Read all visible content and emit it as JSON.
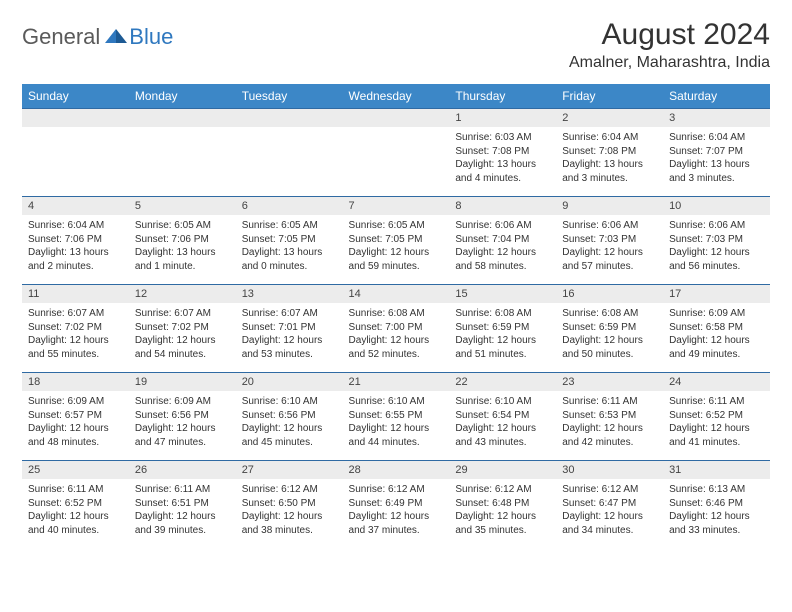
{
  "logo": {
    "text1": "General",
    "text2": "Blue"
  },
  "title": "August 2024",
  "location": "Amalner, Maharashtra, India",
  "colors": {
    "header_bg": "#3c87c7",
    "header_text": "#ffffff",
    "daynum_bg": "#ececec",
    "border": "#2f6aa3",
    "logo_blue": "#2f78bf",
    "logo_gray": "#5a5a5a"
  },
  "daynames": [
    "Sunday",
    "Monday",
    "Tuesday",
    "Wednesday",
    "Thursday",
    "Friday",
    "Saturday"
  ],
  "weeks": [
    [
      {
        "n": "",
        "sr": "",
        "ss": "",
        "dl": ""
      },
      {
        "n": "",
        "sr": "",
        "ss": "",
        "dl": ""
      },
      {
        "n": "",
        "sr": "",
        "ss": "",
        "dl": ""
      },
      {
        "n": "",
        "sr": "",
        "ss": "",
        "dl": ""
      },
      {
        "n": "1",
        "sr": "Sunrise: 6:03 AM",
        "ss": "Sunset: 7:08 PM",
        "dl": "Daylight: 13 hours and 4 minutes."
      },
      {
        "n": "2",
        "sr": "Sunrise: 6:04 AM",
        "ss": "Sunset: 7:08 PM",
        "dl": "Daylight: 13 hours and 3 minutes."
      },
      {
        "n": "3",
        "sr": "Sunrise: 6:04 AM",
        "ss": "Sunset: 7:07 PM",
        "dl": "Daylight: 13 hours and 3 minutes."
      }
    ],
    [
      {
        "n": "4",
        "sr": "Sunrise: 6:04 AM",
        "ss": "Sunset: 7:06 PM",
        "dl": "Daylight: 13 hours and 2 minutes."
      },
      {
        "n": "5",
        "sr": "Sunrise: 6:05 AM",
        "ss": "Sunset: 7:06 PM",
        "dl": "Daylight: 13 hours and 1 minute."
      },
      {
        "n": "6",
        "sr": "Sunrise: 6:05 AM",
        "ss": "Sunset: 7:05 PM",
        "dl": "Daylight: 13 hours and 0 minutes."
      },
      {
        "n": "7",
        "sr": "Sunrise: 6:05 AM",
        "ss": "Sunset: 7:05 PM",
        "dl": "Daylight: 12 hours and 59 minutes."
      },
      {
        "n": "8",
        "sr": "Sunrise: 6:06 AM",
        "ss": "Sunset: 7:04 PM",
        "dl": "Daylight: 12 hours and 58 minutes."
      },
      {
        "n": "9",
        "sr": "Sunrise: 6:06 AM",
        "ss": "Sunset: 7:03 PM",
        "dl": "Daylight: 12 hours and 57 minutes."
      },
      {
        "n": "10",
        "sr": "Sunrise: 6:06 AM",
        "ss": "Sunset: 7:03 PM",
        "dl": "Daylight: 12 hours and 56 minutes."
      }
    ],
    [
      {
        "n": "11",
        "sr": "Sunrise: 6:07 AM",
        "ss": "Sunset: 7:02 PM",
        "dl": "Daylight: 12 hours and 55 minutes."
      },
      {
        "n": "12",
        "sr": "Sunrise: 6:07 AM",
        "ss": "Sunset: 7:02 PM",
        "dl": "Daylight: 12 hours and 54 minutes."
      },
      {
        "n": "13",
        "sr": "Sunrise: 6:07 AM",
        "ss": "Sunset: 7:01 PM",
        "dl": "Daylight: 12 hours and 53 minutes."
      },
      {
        "n": "14",
        "sr": "Sunrise: 6:08 AM",
        "ss": "Sunset: 7:00 PM",
        "dl": "Daylight: 12 hours and 52 minutes."
      },
      {
        "n": "15",
        "sr": "Sunrise: 6:08 AM",
        "ss": "Sunset: 6:59 PM",
        "dl": "Daylight: 12 hours and 51 minutes."
      },
      {
        "n": "16",
        "sr": "Sunrise: 6:08 AM",
        "ss": "Sunset: 6:59 PM",
        "dl": "Daylight: 12 hours and 50 minutes."
      },
      {
        "n": "17",
        "sr": "Sunrise: 6:09 AM",
        "ss": "Sunset: 6:58 PM",
        "dl": "Daylight: 12 hours and 49 minutes."
      }
    ],
    [
      {
        "n": "18",
        "sr": "Sunrise: 6:09 AM",
        "ss": "Sunset: 6:57 PM",
        "dl": "Daylight: 12 hours and 48 minutes."
      },
      {
        "n": "19",
        "sr": "Sunrise: 6:09 AM",
        "ss": "Sunset: 6:56 PM",
        "dl": "Daylight: 12 hours and 47 minutes."
      },
      {
        "n": "20",
        "sr": "Sunrise: 6:10 AM",
        "ss": "Sunset: 6:56 PM",
        "dl": "Daylight: 12 hours and 45 minutes."
      },
      {
        "n": "21",
        "sr": "Sunrise: 6:10 AM",
        "ss": "Sunset: 6:55 PM",
        "dl": "Daylight: 12 hours and 44 minutes."
      },
      {
        "n": "22",
        "sr": "Sunrise: 6:10 AM",
        "ss": "Sunset: 6:54 PM",
        "dl": "Daylight: 12 hours and 43 minutes."
      },
      {
        "n": "23",
        "sr": "Sunrise: 6:11 AM",
        "ss": "Sunset: 6:53 PM",
        "dl": "Daylight: 12 hours and 42 minutes."
      },
      {
        "n": "24",
        "sr": "Sunrise: 6:11 AM",
        "ss": "Sunset: 6:52 PM",
        "dl": "Daylight: 12 hours and 41 minutes."
      }
    ],
    [
      {
        "n": "25",
        "sr": "Sunrise: 6:11 AM",
        "ss": "Sunset: 6:52 PM",
        "dl": "Daylight: 12 hours and 40 minutes."
      },
      {
        "n": "26",
        "sr": "Sunrise: 6:11 AM",
        "ss": "Sunset: 6:51 PM",
        "dl": "Daylight: 12 hours and 39 minutes."
      },
      {
        "n": "27",
        "sr": "Sunrise: 6:12 AM",
        "ss": "Sunset: 6:50 PM",
        "dl": "Daylight: 12 hours and 38 minutes."
      },
      {
        "n": "28",
        "sr": "Sunrise: 6:12 AM",
        "ss": "Sunset: 6:49 PM",
        "dl": "Daylight: 12 hours and 37 minutes."
      },
      {
        "n": "29",
        "sr": "Sunrise: 6:12 AM",
        "ss": "Sunset: 6:48 PM",
        "dl": "Daylight: 12 hours and 35 minutes."
      },
      {
        "n": "30",
        "sr": "Sunrise: 6:12 AM",
        "ss": "Sunset: 6:47 PM",
        "dl": "Daylight: 12 hours and 34 minutes."
      },
      {
        "n": "31",
        "sr": "Sunrise: 6:13 AM",
        "ss": "Sunset: 6:46 PM",
        "dl": "Daylight: 12 hours and 33 minutes."
      }
    ]
  ]
}
